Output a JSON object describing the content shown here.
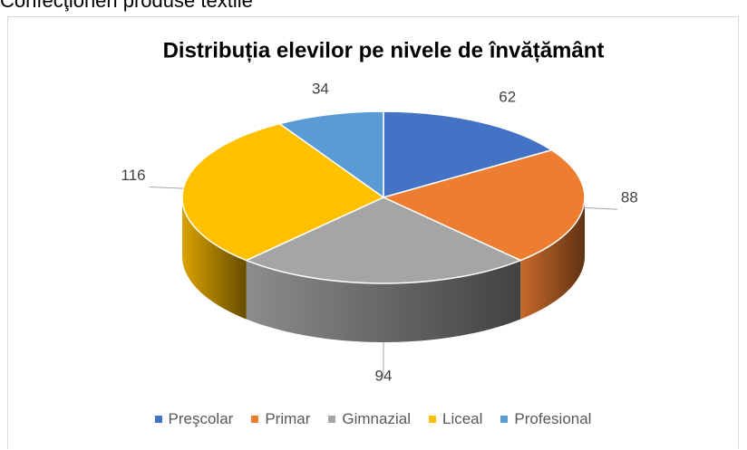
{
  "chart_data": {
    "type": "pie",
    "caption": "Confecţioneri produse textile",
    "title": "Distribuția elevilor pe nivele de învățământ",
    "categories": [
      "Preşcolar",
      "Primar",
      "Gimnazial",
      "Liceal",
      "Profesional"
    ],
    "values": [
      62,
      88,
      94,
      116,
      34
    ],
    "colors": [
      "#4472c4",
      "#ed7d31",
      "#a5a5a5",
      "#ffc000",
      "#5b9bd5"
    ],
    "legend": "bottom"
  }
}
